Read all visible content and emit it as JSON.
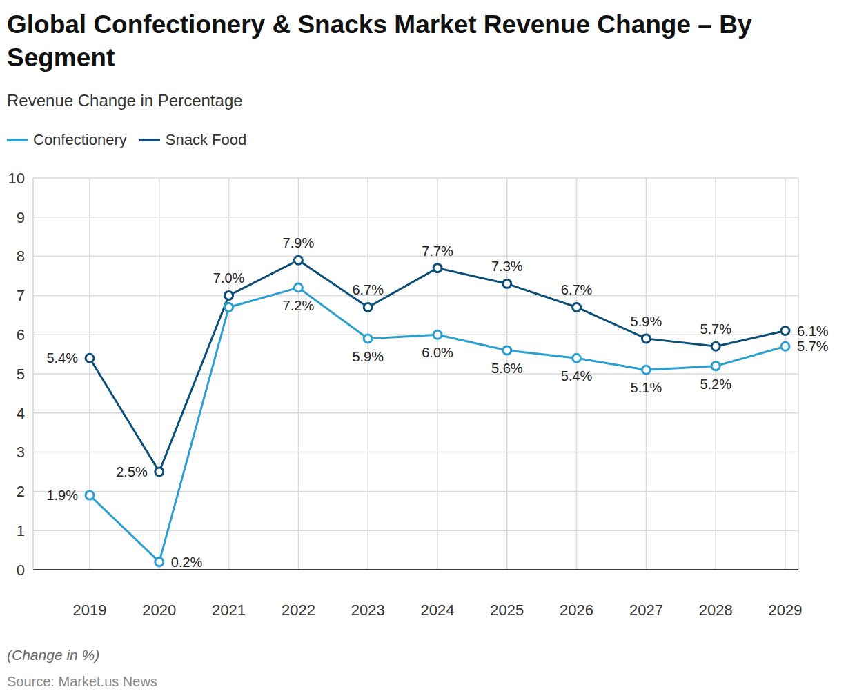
{
  "chart_data": {
    "type": "line",
    "title": "Global Confectionery & Snacks Market Revenue Change – By Segment",
    "subtitle": "Revenue Change in Percentage",
    "footnote": "(Change in %)",
    "source": "Source: Market.us News",
    "categories": [
      "2019",
      "2020",
      "2021",
      "2022",
      "2023",
      "2024",
      "2025",
      "2026",
      "2027",
      "2028",
      "2029"
    ],
    "series": [
      {
        "name": "Confectionery",
        "color": "#2b9fcf",
        "marker": "circle",
        "line_style": "solid",
        "values": [
          1.9,
          0.2,
          6.7,
          7.2,
          5.9,
          6.0,
          5.6,
          5.4,
          5.1,
          5.2,
          5.7
        ],
        "value_labels": [
          "1.9%",
          "0.2%",
          null,
          "7.2%",
          "5.9%",
          "6.0%",
          "5.6%",
          "5.4%",
          "5.1%",
          "5.2%",
          "5.7%"
        ]
      },
      {
        "name": "Snack Food",
        "color": "#0b4f78",
        "marker": "circle",
        "line_style": "solid",
        "values": [
          5.4,
          2.5,
          7.0,
          7.9,
          6.7,
          7.7,
          7.3,
          6.7,
          5.9,
          5.7,
          6.1
        ],
        "value_labels": [
          "5.4%",
          "2.5%",
          "7.0%",
          "7.9%",
          "6.7%",
          "7.7%",
          "7.3%",
          "6.7%",
          "5.9%",
          "5.7%",
          "6.1%"
        ]
      }
    ],
    "ylim": [
      0,
      10
    ],
    "yticks": [
      0,
      1,
      2,
      3,
      4,
      5,
      6,
      7,
      8,
      9,
      10
    ],
    "grid": true,
    "legend": "top-left",
    "data_labels": true
  }
}
